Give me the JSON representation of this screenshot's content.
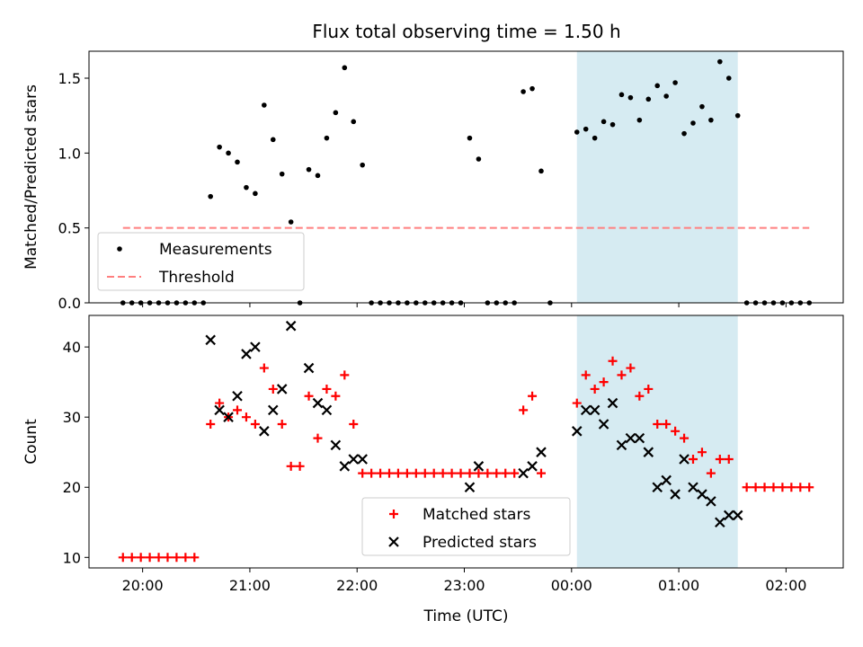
{
  "chart_data": {
    "title": "Flux total observing time = 1.50 h",
    "colors": {
      "measurement": "#000000",
      "threshold": "#ff7f7f",
      "matched": "#ff0000",
      "predicted": "#000000",
      "highlight": "#add8e6"
    },
    "highlight_span": [
      "00:03",
      "01:33"
    ],
    "x_ticks": [
      "20:00",
      "21:00",
      "22:00",
      "23:00",
      "00:00",
      "01:00",
      "02:00"
    ],
    "xlim": [
      "19:30",
      "02:32"
    ],
    "panels": [
      {
        "type": "scatter",
        "ylabel": "Matched/Predicted stars",
        "ylim": [
          0,
          1.68
        ],
        "y_ticks": [
          "0.0",
          "0.5",
          "1.0",
          "1.5"
        ],
        "legend": {
          "placement": "lower-left",
          "entries": [
            "Measurements",
            "Threshold"
          ]
        },
        "series": [
          {
            "name": "Measurements",
            "marker": "dot",
            "x": [
              "19:49",
              "19:54",
              "19:59",
              "20:04",
              "20:09",
              "20:14",
              "20:19",
              "20:24",
              "20:29",
              "20:34",
              "20:38",
              "20:43",
              "20:48",
              "20:53",
              "20:58",
              "21:03",
              "21:08",
              "21:13",
              "21:18",
              "21:23",
              "21:28",
              "21:33",
              "21:38",
              "21:43",
              "21:48",
              "21:53",
              "21:58",
              "22:03",
              "22:08",
              "22:13",
              "22:18",
              "22:23",
              "22:28",
              "22:33",
              "22:38",
              "22:43",
              "22:48",
              "22:53",
              "22:58",
              "23:03",
              "23:08",
              "23:13",
              "23:18",
              "23:23",
              "23:28",
              "23:33",
              "23:38",
              "23:43",
              "23:48",
              "00:03",
              "00:08",
              "00:13",
              "00:18",
              "00:23",
              "00:28",
              "00:33",
              "00:38",
              "00:43",
              "00:48",
              "00:53",
              "00:58",
              "01:03",
              "01:08",
              "01:13",
              "01:18",
              "01:23",
              "01:28",
              "01:33",
              "01:38",
              "01:43",
              "01:48",
              "01:53",
              "01:58",
              "02:03",
              "02:08",
              "02:13"
            ],
            "y": [
              0,
              0,
              0,
              0,
              0,
              0,
              0,
              0,
              0,
              0,
              0.71,
              1.04,
              1.0,
              0.94,
              0.77,
              0.73,
              1.32,
              1.09,
              0.86,
              0.54,
              0,
              0.89,
              0.85,
              1.1,
              1.27,
              1.57,
              1.21,
              0.92,
              0,
              0,
              0,
              0,
              0,
              0,
              0,
              0,
              0,
              0,
              0,
              1.1,
              0.96,
              0,
              0,
              0,
              0,
              1.41,
              1.43,
              0.88,
              0,
              1.14,
              1.16,
              1.1,
              1.21,
              1.19,
              1.39,
              1.37,
              1.22,
              1.36,
              1.45,
              1.38,
              1.47,
              1.13,
              1.2,
              1.31,
              1.22,
              1.61,
              1.5,
              1.25,
              0,
              0,
              0,
              0,
              0,
              0,
              0,
              0
            ]
          },
          {
            "name": "Threshold",
            "marker": "dashed-line",
            "x": [
              "19:49",
              "02:13"
            ],
            "y": [
              0.5,
              0.5
            ]
          }
        ]
      },
      {
        "type": "scatter",
        "ylabel": "Count",
        "xlabel": "Time (UTC)",
        "ylim": [
          8.5,
          44.5
        ],
        "y_ticks": [
          "10",
          "20",
          "30",
          "40"
        ],
        "legend": {
          "placement": "lower-center",
          "entries": [
            "Matched stars",
            "Predicted stars"
          ]
        },
        "series": [
          {
            "name": "Matched stars",
            "marker": "plus",
            "x": [
              "19:49",
              "19:54",
              "19:59",
              "20:04",
              "20:09",
              "20:14",
              "20:19",
              "20:24",
              "20:29",
              "20:38",
              "20:43",
              "20:48",
              "20:53",
              "20:58",
              "21:03",
              "21:08",
              "21:13",
              "21:18",
              "21:23",
              "21:28",
              "21:33",
              "21:38",
              "21:43",
              "21:48",
              "21:53",
              "21:58",
              "22:03",
              "22:08",
              "22:13",
              "22:18",
              "22:23",
              "22:28",
              "22:33",
              "22:38",
              "22:43",
              "22:48",
              "22:53",
              "22:58",
              "23:03",
              "23:08",
              "23:13",
              "23:18",
              "23:23",
              "23:28",
              "23:33",
              "23:38",
              "23:43",
              "00:03",
              "00:08",
              "00:13",
              "00:18",
              "00:23",
              "00:28",
              "00:33",
              "00:38",
              "00:43",
              "00:48",
              "00:53",
              "00:58",
              "01:03",
              "01:08",
              "01:13",
              "01:18",
              "01:23",
              "01:28",
              "01:38",
              "01:43",
              "01:48",
              "01:53",
              "01:58",
              "02:03",
              "02:08",
              "02:13"
            ],
            "y": [
              10,
              10,
              10,
              10,
              10,
              10,
              10,
              10,
              10,
              29,
              32,
              30,
              31,
              30,
              29,
              37,
              34,
              29,
              23,
              23,
              33,
              27,
              34,
              33,
              36,
              29,
              22,
              22,
              22,
              22,
              22,
              22,
              22,
              22,
              22,
              22,
              22,
              22,
              22,
              22,
              22,
              22,
              22,
              22,
              31,
              33,
              22,
              32,
              36,
              34,
              35,
              38,
              36,
              37,
              33,
              34,
              29,
              29,
              28,
              27,
              24,
              25,
              22,
              24,
              24,
              20,
              20,
              20,
              20,
              20,
              20,
              20,
              20
            ]
          },
          {
            "name": "Predicted stars",
            "marker": "x",
            "x": [
              "20:38",
              "20:43",
              "20:48",
              "20:53",
              "20:58",
              "21:03",
              "21:08",
              "21:13",
              "21:18",
              "21:23",
              "21:33",
              "21:38",
              "21:43",
              "21:48",
              "21:53",
              "21:58",
              "22:03",
              "23:03",
              "23:08",
              "23:33",
              "23:38",
              "23:43",
              "00:03",
              "00:08",
              "00:13",
              "00:18",
              "00:23",
              "00:28",
              "00:33",
              "00:38",
              "00:43",
              "00:48",
              "00:53",
              "00:58",
              "01:03",
              "01:08",
              "01:13",
              "01:18",
              "01:23",
              "01:28",
              "01:33"
            ],
            "y": [
              41,
              31,
              30,
              33,
              39,
              40,
              28,
              31,
              34,
              43,
              37,
              32,
              31,
              26,
              23,
              24,
              24,
              20,
              23,
              22,
              23,
              25,
              28,
              31,
              31,
              29,
              32,
              26,
              27,
              27,
              25,
              20,
              21,
              19,
              24,
              20,
              19,
              18,
              15,
              16,
              16
            ]
          }
        ]
      }
    ]
  }
}
